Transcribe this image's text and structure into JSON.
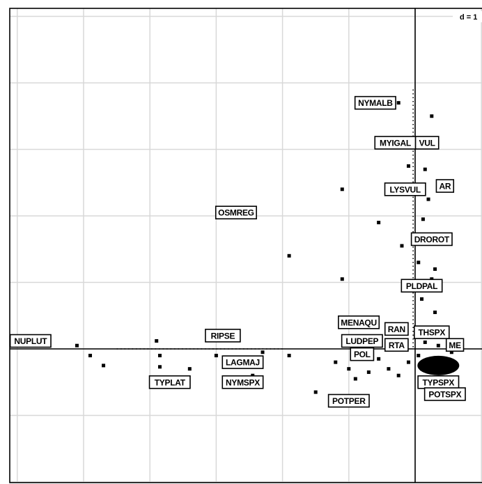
{
  "chart_data": {
    "type": "scatter",
    "title": "",
    "xlabel": "",
    "ylabel": "",
    "grid": true,
    "scale_label": "d = 1",
    "xlim": [
      -6.1,
      1.0
    ],
    "ylim": [
      -2.0,
      5.1
    ],
    "gridlines_x": [
      -6,
      -5,
      -4,
      -3,
      -2,
      -1,
      0,
      1
    ],
    "gridlines_y": [
      -2,
      -1,
      0,
      1,
      2,
      3,
      4,
      5
    ],
    "labels": [
      {
        "text": "NYMALB",
        "x": -0.6,
        "y": 3.7
      },
      {
        "text": "MYIGAL",
        "x": -0.3,
        "y": 3.1
      },
      {
        "text": "VUL",
        "x": 0.18,
        "y": 3.1
      },
      {
        "text": "LYSVUL",
        "x": -0.15,
        "y": 2.4
      },
      {
        "text": "AR",
        "x": 0.45,
        "y": 2.45
      },
      {
        "text": "OSMREG",
        "x": -2.7,
        "y": 2.05
      },
      {
        "text": "DROROT",
        "x": 0.25,
        "y": 1.65
      },
      {
        "text": "PLDPAL",
        "x": 0.1,
        "y": 0.95
      },
      {
        "text": "MENAQU",
        "x": -0.85,
        "y": 0.4
      },
      {
        "text": "RAN",
        "x": -0.28,
        "y": 0.3
      },
      {
        "text": "THSPX",
        "x": 0.25,
        "y": 0.25
      },
      {
        "text": "LUDPEP",
        "x": -0.8,
        "y": 0.12
      },
      {
        "text": "RTA",
        "x": -0.28,
        "y": 0.06
      },
      {
        "text": "ME",
        "x": 0.6,
        "y": 0.06
      },
      {
        "text": "POL",
        "x": -0.8,
        "y": -0.08
      },
      {
        "text": "NUPLUT",
        "x": -5.8,
        "y": 0.12
      },
      {
        "text": "RIPSE",
        "x": -2.9,
        "y": 0.2
      },
      {
        "text": "LAGMAJ",
        "x": -2.6,
        "y": -0.2
      },
      {
        "text": "TYPLAT",
        "x": -3.7,
        "y": -0.5
      },
      {
        "text": "NYMSPX",
        "x": -2.6,
        "y": -0.5
      },
      {
        "text": "TYPSPX",
        "x": 0.35,
        "y": -0.5
      },
      {
        "text": "POTSPX",
        "x": 0.45,
        "y": -0.68
      },
      {
        "text": "POTPER",
        "x": -1.0,
        "y": -0.78
      }
    ],
    "points": [
      {
        "x": -5.1,
        "y": 0.05
      },
      {
        "x": -4.9,
        "y": -0.1
      },
      {
        "x": -4.7,
        "y": -0.25
      },
      {
        "x": -3.9,
        "y": 0.12
      },
      {
        "x": -3.85,
        "y": -0.1
      },
      {
        "x": -3.85,
        "y": -0.27
      },
      {
        "x": -3.4,
        "y": -0.3
      },
      {
        "x": -3.0,
        "y": -0.1
      },
      {
        "x": -2.7,
        "y": -0.2
      },
      {
        "x": -2.45,
        "y": -0.4
      },
      {
        "x": -2.3,
        "y": -0.05
      },
      {
        "x": -1.9,
        "y": -0.1
      },
      {
        "x": -1.9,
        "y": 1.4
      },
      {
        "x": -1.1,
        "y": 2.4
      },
      {
        "x": -0.55,
        "y": 1.9
      },
      {
        "x": -1.5,
        "y": -0.65
      },
      {
        "x": -1.1,
        "y": 1.05
      },
      {
        "x": -0.25,
        "y": 3.7
      },
      {
        "x": 0.25,
        "y": 3.5
      },
      {
        "x": -0.1,
        "y": 2.75
      },
      {
        "x": 0.15,
        "y": 2.7
      },
      {
        "x": 0.0,
        "y": 2.45
      },
      {
        "x": 0.2,
        "y": 2.25
      },
      {
        "x": 0.12,
        "y": 1.95
      },
      {
        "x": -0.2,
        "y": 1.55
      },
      {
        "x": 0.05,
        "y": 1.3
      },
      {
        "x": 0.3,
        "y": 1.2
      },
      {
        "x": 0.25,
        "y": 1.05
      },
      {
        "x": 0.1,
        "y": 0.75
      },
      {
        "x": 0.3,
        "y": 0.55
      },
      {
        "x": -1.2,
        "y": -0.2
      },
      {
        "x": -1.0,
        "y": -0.3
      },
      {
        "x": -0.9,
        "y": -0.45
      },
      {
        "x": -0.7,
        "y": -0.35
      },
      {
        "x": -0.55,
        "y": -0.15
      },
      {
        "x": -0.4,
        "y": -0.3
      },
      {
        "x": -0.25,
        "y": -0.4
      },
      {
        "x": -0.1,
        "y": -0.2
      },
      {
        "x": 0.1,
        "y": -0.3
      },
      {
        "x": 0.3,
        "y": -0.15
      },
      {
        "x": 0.45,
        "y": -0.35
      },
      {
        "x": 0.6,
        "y": -0.25
      },
      {
        "x": 0.2,
        "y": -0.45
      },
      {
        "x": 0.05,
        "y": -0.1
      },
      {
        "x": 0.35,
        "y": 0.05
      },
      {
        "x": 0.55,
        "y": -0.05
      },
      {
        "x": 0.15,
        "y": 0.1
      },
      {
        "x": -0.15,
        "y": 0.0
      }
    ],
    "dotted_guides": [
      {
        "x1": -4.5,
        "y1": 0.0,
        "x2": -2.0,
        "y2": 0.0
      },
      {
        "x1": -0.03,
        "y1": 3.9,
        "x2": -0.03,
        "y2": 0.0
      }
    ]
  }
}
